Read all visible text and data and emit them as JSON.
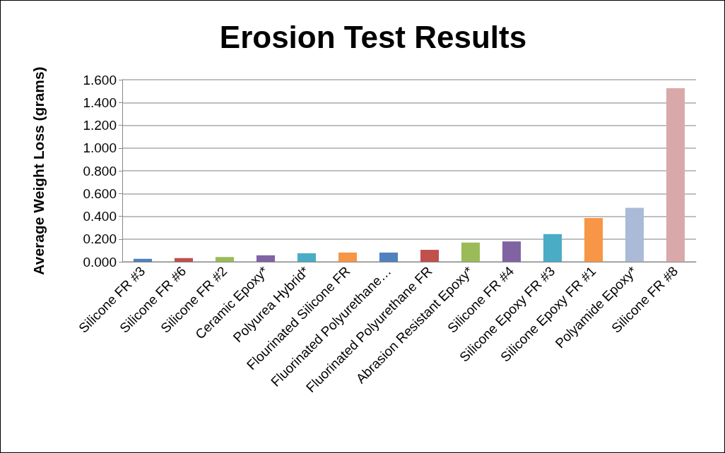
{
  "chart_data": {
    "type": "bar",
    "title": "Erosion Test Results",
    "ylabel": "Average Weight Loss (grams)",
    "categories": [
      "Silicone FR #3",
      "Silicone FR #6",
      "Silicone FR #2",
      "Ceramic Epoxy*",
      "Polyurea Hybrid*",
      "Flourinated Silicone FR",
      "Fluorinated Polyurethane…",
      "Fluorinated Polyurethane FR",
      "Abrasion Resistant Epoxy*",
      "Silicone FR #4",
      "Silicone Epoxy FR #3",
      "Silicone Epoxy FR #1",
      "Polyamide Epoxy*",
      "Silicone FR #8"
    ],
    "values": [
      0.026,
      0.033,
      0.042,
      0.057,
      0.075,
      0.081,
      0.081,
      0.105,
      0.169,
      0.179,
      0.244,
      0.385,
      0.475,
      1.525
    ],
    "colors": [
      "#4f81bd",
      "#c0504d",
      "#9bbb59",
      "#8064a2",
      "#4bacc6",
      "#f79646",
      "#4f81bd",
      "#c0504d",
      "#9bbb59",
      "#8064a2",
      "#4bacc6",
      "#f79646",
      "#aabad7",
      "#d9a9a9"
    ],
    "ylim": [
      0,
      1.6
    ],
    "yticks": [
      {
        "value": 0,
        "label": "0.000"
      },
      {
        "value": 0.2,
        "label": "0.200"
      },
      {
        "value": 0.4,
        "label": "0.400"
      },
      {
        "value": 0.6,
        "label": "0.600"
      },
      {
        "value": 0.8,
        "label": "0.800"
      },
      {
        "value": 1,
        "label": "1.000"
      },
      {
        "value": 1.2,
        "label": "1.200"
      },
      {
        "value": 1.4,
        "label": "1.400"
      },
      {
        "value": 1.6,
        "label": "1.600"
      }
    ],
    "grid": true
  }
}
